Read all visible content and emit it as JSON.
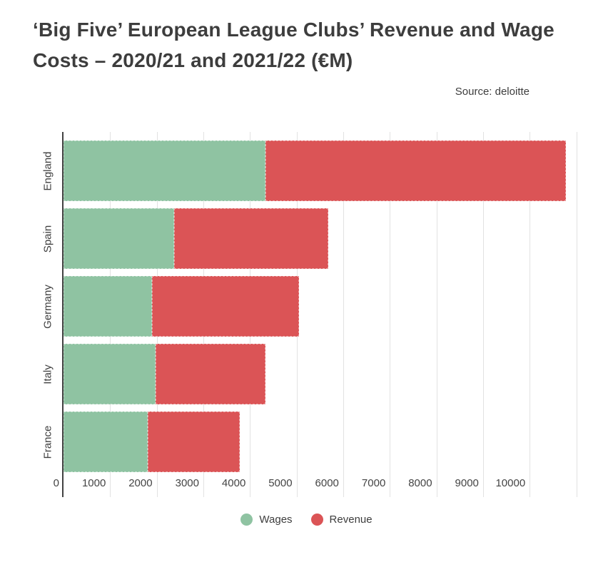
{
  "header": {
    "title_line1": "‘Big Five’ European League Clubs’ Revenue and Wage",
    "title_line2": "Costs – 2020/21 and 2021/22 (€M)",
    "source": "Source: deloitte"
  },
  "colors": {
    "wages": "#8FC3A2",
    "revenue": "#DB5456",
    "axis_line": "#424242",
    "gridline": "#e2e2e2",
    "text": "#3d3d3d"
  },
  "chart_data": {
    "type": "bar",
    "orientation": "horizontal",
    "stacked": true,
    "title": "‘Big Five’ European League Clubs’ Revenue and Wage Costs – 2020/21 and 2021/22 (€M)",
    "source": "Source: deloitte",
    "categories": [
      "England",
      "Spain",
      "Germany",
      "Italy",
      "France"
    ],
    "series": [
      {
        "name": "Wages",
        "color": "#8FC3A2",
        "values": [
          4325,
          2375,
          1900,
          1975,
          1800
        ]
      },
      {
        "name": "Revenue",
        "color": "#DB5456",
        "values": [
          6450,
          3300,
          3150,
          2350,
          1975
        ]
      }
    ],
    "totals": [
      10775,
      5675,
      5050,
      4325,
      3775
    ],
    "xlabel": "",
    "ylabel": "",
    "x_axis": {
      "ticks": [
        0,
        1000,
        2000,
        3000,
        4000,
        5000,
        6000,
        7000,
        8000,
        9000,
        10000
      ],
      "gridline_extra": 11000,
      "xlim": [
        0,
        11650
      ]
    },
    "grid": true,
    "legend": {
      "position": "bottom",
      "entries": [
        "Wages",
        "Revenue"
      ]
    }
  }
}
